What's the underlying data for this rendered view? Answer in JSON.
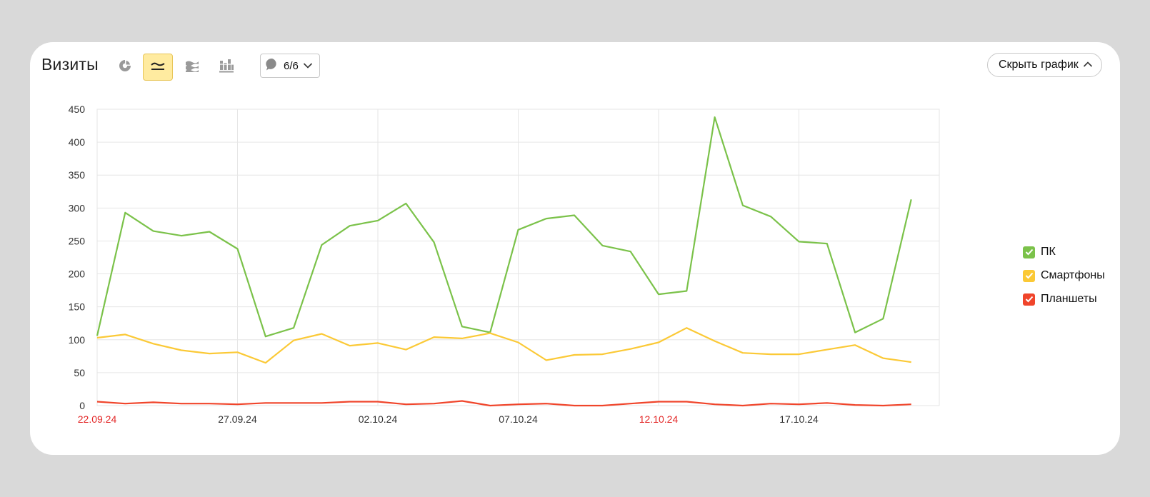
{
  "header": {
    "title": "Визиты",
    "notes_label": "6/6",
    "hide_chart_label": "Скрыть график"
  },
  "toolbar": {
    "icons": [
      "pie-chart-icon",
      "line-chart-icon",
      "stacked-area-icon",
      "stacked-bar-icon"
    ],
    "active": "line-chart-icon",
    "active_color": "#ffeba0"
  },
  "chart_data": {
    "type": "line",
    "x": [
      "22.09.24",
      "23.09.24",
      "24.09.24",
      "25.09.24",
      "26.09.24",
      "27.09.24",
      "28.09.24",
      "29.09.24",
      "30.09.24",
      "01.10.24",
      "02.10.24",
      "03.10.24",
      "04.10.24",
      "05.10.24",
      "06.10.24",
      "07.10.24",
      "08.10.24",
      "09.10.24",
      "10.10.24",
      "11.10.24",
      "12.10.24",
      "13.10.24",
      "14.10.24",
      "15.10.24",
      "16.10.24",
      "17.10.24",
      "18.10.24",
      "19.10.24",
      "20.10.24",
      "21.10.24"
    ],
    "x_tick_labels": [
      {
        "label": "22.09.24",
        "weekend": true
      },
      {
        "label": "27.09.24",
        "weekend": false
      },
      {
        "label": "02.10.24",
        "weekend": false
      },
      {
        "label": "07.10.24",
        "weekend": false
      },
      {
        "label": "12.10.24",
        "weekend": true
      },
      {
        "label": "17.10.24",
        "weekend": false
      }
    ],
    "y_ticks": [
      0,
      50,
      100,
      150,
      200,
      250,
      300,
      350,
      400,
      450
    ],
    "ylim": [
      0,
      450
    ],
    "grid": true,
    "legend_position": "right",
    "series": [
      {
        "name": "ПК",
        "color": "#7bc24a",
        "values": [
          106,
          293,
          265,
          258,
          264,
          238,
          105,
          118,
          244,
          273,
          281,
          307,
          248,
          120,
          111,
          267,
          284,
          289,
          243,
          234,
          169,
          174,
          438,
          304,
          287,
          249,
          246,
          111,
          132,
          313
        ]
      },
      {
        "name": "Смартфоны",
        "color": "#fbc936",
        "values": [
          103,
          108,
          94,
          84,
          79,
          81,
          65,
          99,
          109,
          91,
          95,
          85,
          104,
          102,
          110,
          96,
          69,
          77,
          78,
          86,
          96,
          118,
          98,
          80,
          78,
          78,
          85,
          92,
          72,
          66
        ]
      },
      {
        "name": "Планшеты",
        "color": "#f0452b",
        "values": [
          6,
          3,
          5,
          3,
          3,
          2,
          4,
          4,
          4,
          6,
          6,
          2,
          3,
          7,
          0,
          2,
          3,
          0,
          0,
          3,
          6,
          6,
          2,
          0,
          3,
          2,
          4,
          1,
          0,
          2
        ]
      }
    ]
  },
  "colors": {
    "weekend_label": "#e32727",
    "grid": "#e6e6e6",
    "background": "#d9d9d9"
  }
}
